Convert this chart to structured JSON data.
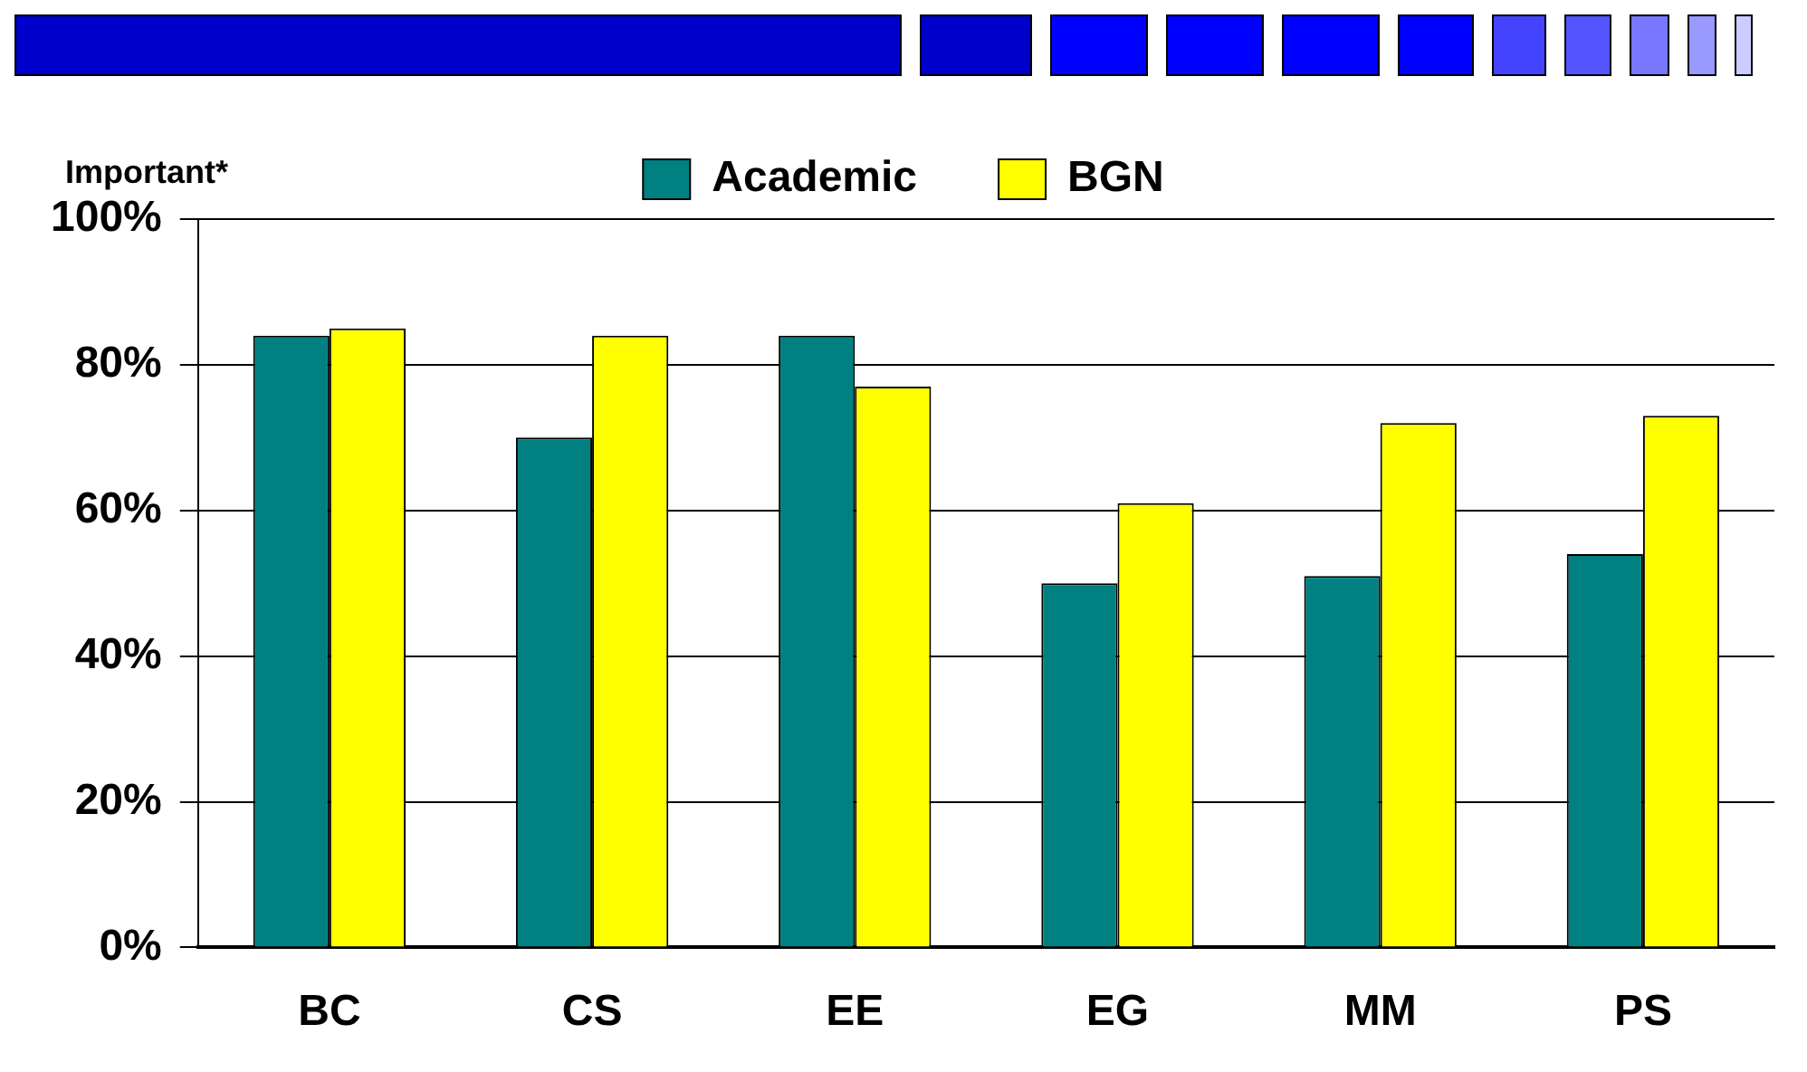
{
  "chart_data": {
    "type": "bar",
    "ylabel": "Important*",
    "categories": [
      "BC",
      "CS",
      "EE",
      "EG",
      "MM",
      "PS"
    ],
    "series": [
      {
        "name": "Academic",
        "color": "#008080",
        "values": [
          84,
          70,
          84,
          50,
          51,
          54
        ]
      },
      {
        "name": "BGN",
        "color": "#ffff00",
        "values": [
          85,
          84,
          77,
          61,
          72,
          73
        ]
      }
    ],
    "ylim": [
      0,
      100
    ],
    "yticks": [
      {
        "value": 0,
        "label": "0%"
      },
      {
        "value": 20,
        "label": "20%"
      },
      {
        "value": 40,
        "label": "40%"
      },
      {
        "value": 60,
        "label": "60%"
      },
      {
        "value": 80,
        "label": "80%"
      },
      {
        "value": 100,
        "label": "100%"
      }
    ],
    "grid": "y",
    "legend": "top"
  }
}
